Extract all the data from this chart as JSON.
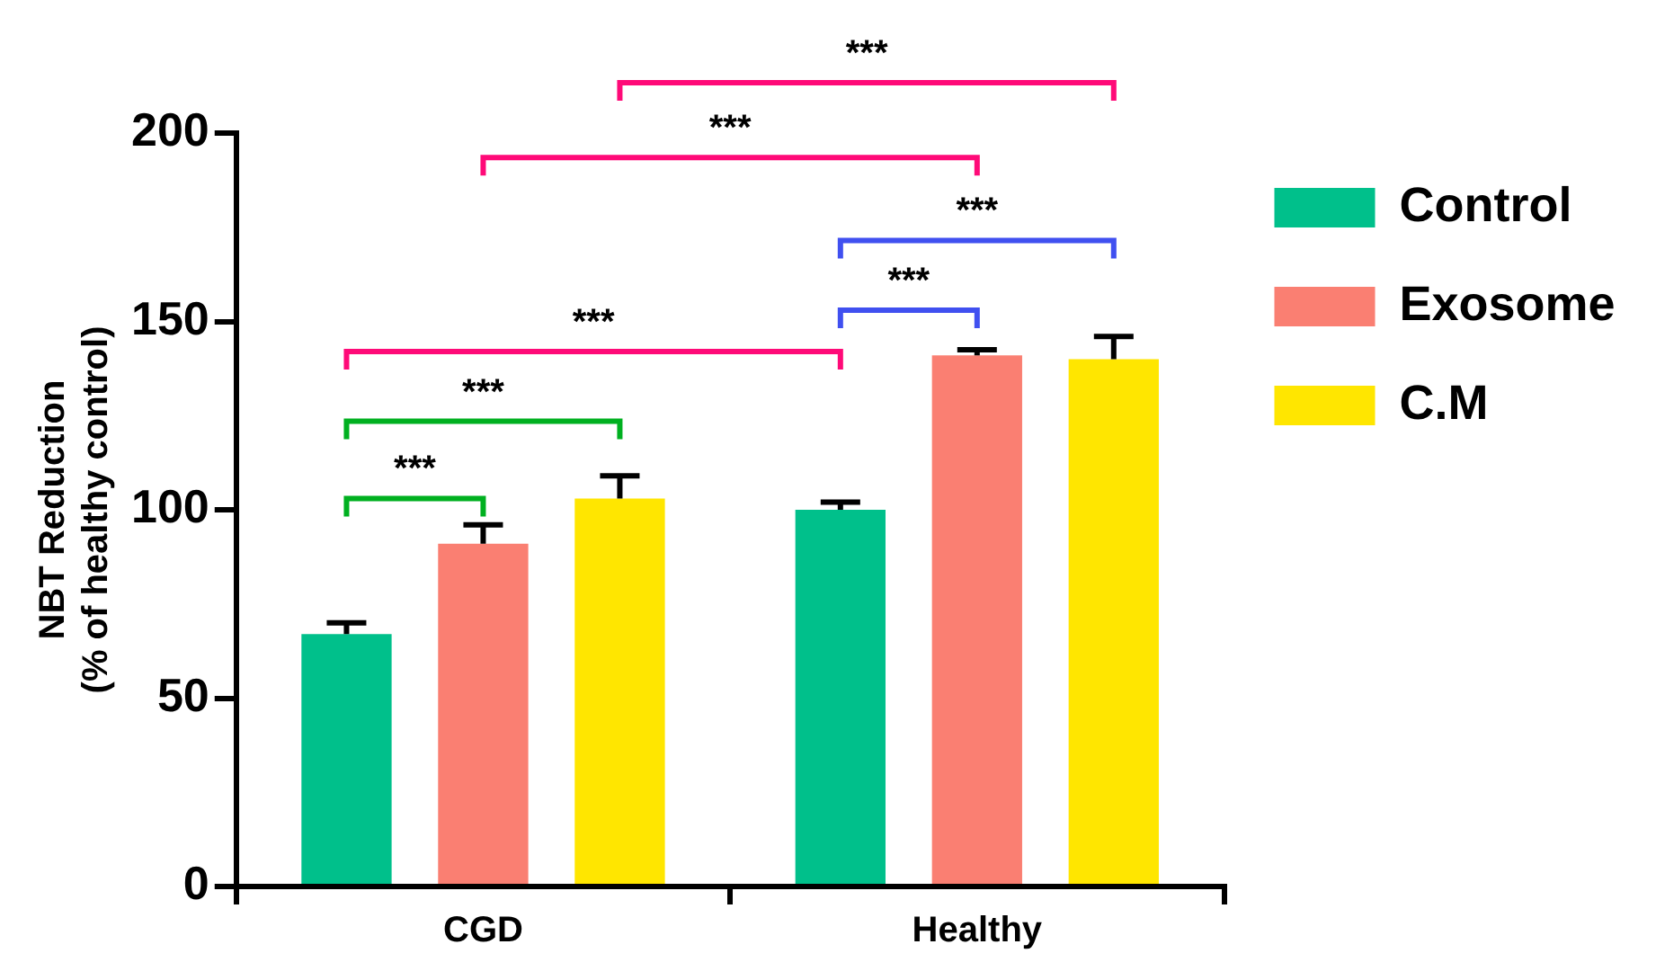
{
  "chart_data": {
    "type": "bar",
    "ylabel": "NBT Reduction\n(% of healthy control)",
    "categories": [
      "CGD",
      "Healthy"
    ],
    "series": [
      {
        "name": "Control",
        "color": "#00c08b",
        "values": [
          67,
          100
        ],
        "errors": [
          3,
          2
        ]
      },
      {
        "name": "Exosome",
        "color": "#fa7f72",
        "values": [
          91,
          141
        ],
        "errors": [
          5,
          1.5
        ]
      },
      {
        "name": "C.M",
        "color": "#ffe600",
        "values": [
          103,
          140
        ],
        "errors": [
          6,
          6
        ]
      }
    ],
    "ylim": [
      0,
      200
    ],
    "yticks": [
      0,
      50,
      100,
      150,
      200
    ],
    "grid": false,
    "legend": "top right",
    "annotations": [
      "***",
      "***",
      "***",
      "***",
      "***",
      "***",
      "***"
    ]
  }
}
